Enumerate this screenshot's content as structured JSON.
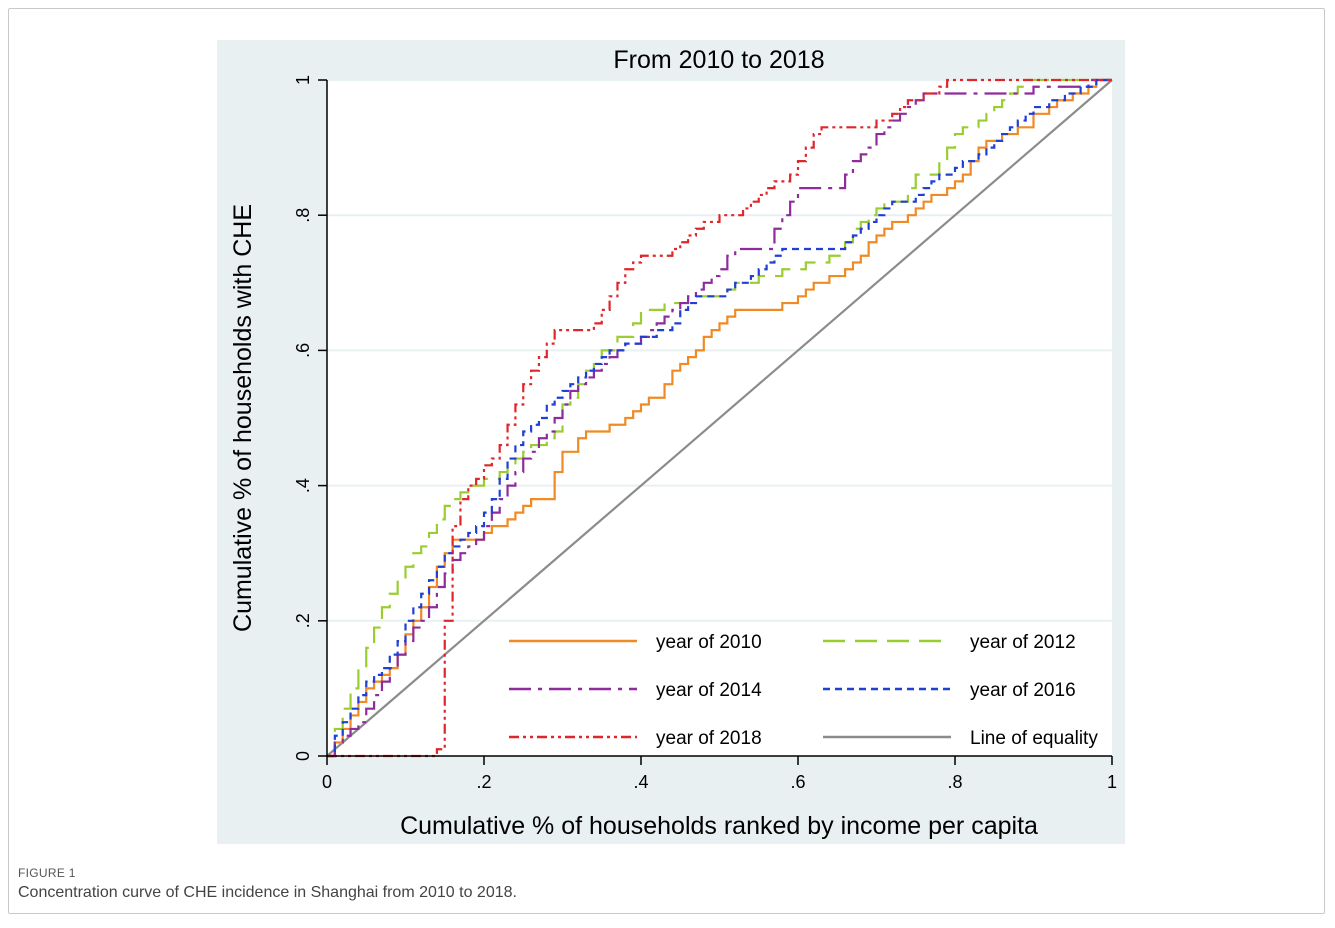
{
  "figure": {
    "label": "FIGURE 1",
    "caption": "Concentration curve of CHE incidence in Shanghai from 2010 to 2018."
  },
  "colors": {
    "panel_bg": "#e9f0f2",
    "plot_bg": "#ffffff",
    "grid": "#e9f0f2",
    "axis": "#000000"
  },
  "chart_data": {
    "type": "line",
    "title": "From 2010 to 2018",
    "xlabel": "Cumulative % of households ranked by income per capita",
    "ylabel": "Cumulative % of households with CHE",
    "xlim": [
      0,
      1
    ],
    "ylim": [
      0,
      1
    ],
    "xticks": [
      0,
      0.2,
      0.4,
      0.6,
      0.8,
      1
    ],
    "xtick_labels": [
      "0",
      ".2",
      ".4",
      ".6",
      ".8",
      "1"
    ],
    "yticks": [
      0,
      0.2,
      0.4,
      0.6,
      0.8,
      1
    ],
    "ytick_labels": [
      "0",
      ".2",
      ".4",
      ".6",
      ".8",
      "1"
    ],
    "grid": "horizontal",
    "legend_position": "bottom-right, inside plot, 2 columns",
    "series": [
      {
        "name": "year of 2010",
        "color": "#f08a24",
        "dash": "solid",
        "x": [
          0,
          0.01,
          0.02,
          0.03,
          0.04,
          0.05,
          0.06,
          0.07,
          0.08,
          0.09,
          0.1,
          0.11,
          0.12,
          0.13,
          0.14,
          0.15,
          0.16,
          0.17,
          0.18,
          0.19,
          0.2,
          0.21,
          0.22,
          0.23,
          0.24,
          0.25,
          0.26,
          0.27,
          0.28,
          0.29,
          0.3,
          0.31,
          0.32,
          0.33,
          0.34,
          0.35,
          0.36,
          0.37,
          0.38,
          0.39,
          0.4,
          0.41,
          0.42,
          0.43,
          0.44,
          0.45,
          0.46,
          0.47,
          0.48,
          0.49,
          0.5,
          0.51,
          0.52,
          0.53,
          0.54,
          0.55,
          0.56,
          0.57,
          0.58,
          0.59,
          0.6,
          0.61,
          0.62,
          0.63,
          0.64,
          0.65,
          0.66,
          0.67,
          0.68,
          0.69,
          0.7,
          0.71,
          0.72,
          0.73,
          0.74,
          0.75,
          0.76,
          0.77,
          0.78,
          0.79,
          0.8,
          0.81,
          0.82,
          0.83,
          0.84,
          0.85,
          0.86,
          0.87,
          0.88,
          0.89,
          0.9,
          0.91,
          0.92,
          0.93,
          0.94,
          0.95,
          0.96,
          0.97,
          0.98,
          0.99,
          1
        ],
        "y": [
          0,
          0.02,
          0.04,
          0.06,
          0.08,
          0.1,
          0.11,
          0.12,
          0.13,
          0.15,
          0.18,
          0.2,
          0.22,
          0.25,
          0.28,
          0.3,
          0.32,
          0.32,
          0.32,
          0.32,
          0.33,
          0.34,
          0.34,
          0.35,
          0.36,
          0.37,
          0.38,
          0.38,
          0.38,
          0.42,
          0.45,
          0.45,
          0.47,
          0.48,
          0.48,
          0.48,
          0.49,
          0.49,
          0.5,
          0.51,
          0.52,
          0.53,
          0.53,
          0.55,
          0.57,
          0.58,
          0.59,
          0.6,
          0.62,
          0.63,
          0.64,
          0.65,
          0.66,
          0.66,
          0.66,
          0.66,
          0.66,
          0.66,
          0.67,
          0.67,
          0.68,
          0.69,
          0.7,
          0.7,
          0.71,
          0.71,
          0.72,
          0.73,
          0.74,
          0.76,
          0.77,
          0.78,
          0.79,
          0.79,
          0.8,
          0.81,
          0.82,
          0.83,
          0.83,
          0.84,
          0.85,
          0.86,
          0.88,
          0.9,
          0.91,
          0.91,
          0.92,
          0.92,
          0.93,
          0.93,
          0.95,
          0.95,
          0.96,
          0.97,
          0.97,
          0.98,
          0.98,
          0.99,
          1,
          1,
          1
        ]
      },
      {
        "name": "year of 2012",
        "color": "#9acd32",
        "dash": "long-dash",
        "x": [
          0,
          0.01,
          0.02,
          0.03,
          0.04,
          0.05,
          0.06,
          0.07,
          0.08,
          0.09,
          0.1,
          0.11,
          0.12,
          0.13,
          0.14,
          0.15,
          0.16,
          0.17,
          0.18,
          0.19,
          0.2,
          0.21,
          0.22,
          0.23,
          0.24,
          0.25,
          0.26,
          0.27,
          0.28,
          0.29,
          0.3,
          0.31,
          0.32,
          0.33,
          0.34,
          0.35,
          0.36,
          0.37,
          0.38,
          0.39,
          0.4,
          0.41,
          0.42,
          0.43,
          0.44,
          0.45,
          0.46,
          0.47,
          0.48,
          0.49,
          0.5,
          0.51,
          0.52,
          0.53,
          0.54,
          0.55,
          0.56,
          0.57,
          0.58,
          0.59,
          0.6,
          0.61,
          0.62,
          0.63,
          0.64,
          0.65,
          0.66,
          0.67,
          0.68,
          0.69,
          0.7,
          0.71,
          0.72,
          0.73,
          0.74,
          0.75,
          0.76,
          0.77,
          0.78,
          0.79,
          0.8,
          0.81,
          0.82,
          0.83,
          0.84,
          0.85,
          0.86,
          0.87,
          0.88,
          0.89,
          0.9,
          0.91,
          0.92,
          0.93,
          0.94,
          0.95,
          0.96,
          0.97,
          0.98,
          0.99,
          1
        ],
        "y": [
          0,
          0.04,
          0.07,
          0.1,
          0.13,
          0.16,
          0.19,
          0.22,
          0.24,
          0.26,
          0.28,
          0.3,
          0.31,
          0.33,
          0.35,
          0.37,
          0.38,
          0.39,
          0.4,
          0.4,
          0.41,
          0.41,
          0.42,
          0.43,
          0.44,
          0.45,
          0.46,
          0.46,
          0.47,
          0.48,
          0.52,
          0.53,
          0.55,
          0.57,
          0.58,
          0.6,
          0.6,
          0.62,
          0.62,
          0.64,
          0.66,
          0.66,
          0.66,
          0.67,
          0.67,
          0.67,
          0.68,
          0.68,
          0.68,
          0.68,
          0.68,
          0.69,
          0.7,
          0.7,
          0.7,
          0.71,
          0.71,
          0.71,
          0.72,
          0.72,
          0.72,
          0.73,
          0.73,
          0.73,
          0.74,
          0.74,
          0.76,
          0.78,
          0.79,
          0.8,
          0.81,
          0.82,
          0.82,
          0.82,
          0.84,
          0.86,
          0.86,
          0.86,
          0.88,
          0.9,
          0.92,
          0.93,
          0.93,
          0.94,
          0.95,
          0.96,
          0.97,
          0.98,
          0.99,
          1,
          1,
          1,
          1,
          1,
          1,
          1,
          1,
          1,
          1,
          1,
          1
        ]
      },
      {
        "name": "year of 2014",
        "color": "#8e2c9c",
        "dash": "dash-dot",
        "x": [
          0,
          0.01,
          0.02,
          0.03,
          0.04,
          0.05,
          0.06,
          0.07,
          0.08,
          0.09,
          0.1,
          0.11,
          0.12,
          0.13,
          0.14,
          0.15,
          0.16,
          0.17,
          0.18,
          0.19,
          0.2,
          0.21,
          0.22,
          0.23,
          0.24,
          0.25,
          0.26,
          0.27,
          0.28,
          0.29,
          0.3,
          0.31,
          0.32,
          0.33,
          0.34,
          0.35,
          0.36,
          0.37,
          0.38,
          0.39,
          0.4,
          0.41,
          0.42,
          0.43,
          0.44,
          0.45,
          0.46,
          0.47,
          0.48,
          0.49,
          0.5,
          0.51,
          0.52,
          0.53,
          0.54,
          0.55,
          0.56,
          0.57,
          0.58,
          0.59,
          0.6,
          0.61,
          0.62,
          0.63,
          0.64,
          0.65,
          0.66,
          0.67,
          0.68,
          0.69,
          0.7,
          0.71,
          0.72,
          0.73,
          0.74,
          0.75,
          0.76,
          0.77,
          0.78,
          0.79,
          0.8,
          0.81,
          0.82,
          0.83,
          0.84,
          0.85,
          0.86,
          0.87,
          0.88,
          0.89,
          0.9,
          0.91,
          0.92,
          0.93,
          0.94,
          0.95,
          0.96,
          0.97,
          0.98,
          0.99,
          1
        ],
        "y": [
          0,
          0.02,
          0.03,
          0.04,
          0.05,
          0.07,
          0.09,
          0.11,
          0.13,
          0.15,
          0.17,
          0.19,
          0.2,
          0.22,
          0.25,
          0.27,
          0.29,
          0.3,
          0.31,
          0.32,
          0.34,
          0.36,
          0.38,
          0.4,
          0.42,
          0.44,
          0.45,
          0.47,
          0.48,
          0.5,
          0.52,
          0.54,
          0.55,
          0.56,
          0.57,
          0.58,
          0.59,
          0.6,
          0.61,
          0.61,
          0.62,
          0.63,
          0.64,
          0.65,
          0.66,
          0.67,
          0.68,
          0.69,
          0.7,
          0.71,
          0.72,
          0.74,
          0.75,
          0.75,
          0.75,
          0.75,
          0.75,
          0.78,
          0.8,
          0.82,
          0.84,
          0.84,
          0.84,
          0.84,
          0.84,
          0.84,
          0.86,
          0.88,
          0.89,
          0.9,
          0.92,
          0.93,
          0.94,
          0.95,
          0.96,
          0.97,
          0.98,
          0.98,
          0.98,
          0.98,
          0.98,
          0.98,
          0.98,
          0.98,
          0.98,
          0.98,
          0.98,
          0.98,
          0.98,
          0.98,
          0.99,
          0.99,
          0.99,
          0.99,
          0.99,
          0.99,
          0.99,
          1,
          1,
          1,
          1
        ]
      },
      {
        "name": "year of 2016",
        "color": "#1f3fd6",
        "dash": "short-dash",
        "x": [
          0,
          0.01,
          0.02,
          0.03,
          0.04,
          0.05,
          0.06,
          0.07,
          0.08,
          0.09,
          0.1,
          0.11,
          0.12,
          0.13,
          0.14,
          0.15,
          0.16,
          0.17,
          0.18,
          0.19,
          0.2,
          0.21,
          0.22,
          0.23,
          0.24,
          0.25,
          0.26,
          0.27,
          0.28,
          0.29,
          0.3,
          0.31,
          0.32,
          0.33,
          0.34,
          0.35,
          0.36,
          0.37,
          0.38,
          0.39,
          0.4,
          0.41,
          0.42,
          0.43,
          0.44,
          0.45,
          0.46,
          0.47,
          0.48,
          0.49,
          0.5,
          0.51,
          0.52,
          0.53,
          0.54,
          0.55,
          0.56,
          0.57,
          0.58,
          0.59,
          0.6,
          0.61,
          0.62,
          0.63,
          0.64,
          0.65,
          0.66,
          0.67,
          0.68,
          0.69,
          0.7,
          0.71,
          0.72,
          0.73,
          0.74,
          0.75,
          0.76,
          0.77,
          0.78,
          0.79,
          0.8,
          0.81,
          0.82,
          0.83,
          0.84,
          0.85,
          0.86,
          0.87,
          0.88,
          0.89,
          0.9,
          0.91,
          0.92,
          0.93,
          0.94,
          0.95,
          0.96,
          0.97,
          0.98,
          0.99,
          1
        ],
        "y": [
          0,
          0.03,
          0.05,
          0.07,
          0.09,
          0.11,
          0.12,
          0.13,
          0.15,
          0.17,
          0.2,
          0.22,
          0.24,
          0.26,
          0.28,
          0.3,
          0.31,
          0.32,
          0.33,
          0.34,
          0.36,
          0.38,
          0.41,
          0.44,
          0.46,
          0.48,
          0.49,
          0.5,
          0.52,
          0.53,
          0.54,
          0.55,
          0.56,
          0.57,
          0.58,
          0.59,
          0.6,
          0.6,
          0.61,
          0.61,
          0.62,
          0.62,
          0.63,
          0.63,
          0.64,
          0.66,
          0.67,
          0.68,
          0.68,
          0.68,
          0.68,
          0.69,
          0.7,
          0.7,
          0.71,
          0.72,
          0.73,
          0.74,
          0.75,
          0.75,
          0.75,
          0.75,
          0.75,
          0.75,
          0.75,
          0.75,
          0.76,
          0.77,
          0.78,
          0.79,
          0.8,
          0.81,
          0.82,
          0.82,
          0.82,
          0.83,
          0.84,
          0.85,
          0.86,
          0.86,
          0.87,
          0.88,
          0.88,
          0.89,
          0.9,
          0.91,
          0.92,
          0.93,
          0.94,
          0.95,
          0.96,
          0.96,
          0.97,
          0.97,
          0.98,
          0.98,
          0.99,
          0.99,
          1,
          1,
          1
        ]
      },
      {
        "name": "year of 2018",
        "color": "#e0262a",
        "dash": "dash-dot-dot",
        "x": [
          0,
          0.01,
          0.02,
          0.03,
          0.04,
          0.05,
          0.06,
          0.07,
          0.08,
          0.09,
          0.1,
          0.11,
          0.12,
          0.13,
          0.14,
          0.15,
          0.16,
          0.17,
          0.18,
          0.19,
          0.2,
          0.21,
          0.22,
          0.23,
          0.24,
          0.25,
          0.26,
          0.27,
          0.28,
          0.29,
          0.3,
          0.31,
          0.32,
          0.33,
          0.34,
          0.35,
          0.36,
          0.37,
          0.38,
          0.39,
          0.4,
          0.41,
          0.42,
          0.43,
          0.44,
          0.45,
          0.46,
          0.47,
          0.48,
          0.49,
          0.5,
          0.51,
          0.52,
          0.53,
          0.54,
          0.55,
          0.56,
          0.57,
          0.58,
          0.59,
          0.6,
          0.61,
          0.62,
          0.63,
          0.64,
          0.65,
          0.66,
          0.67,
          0.68,
          0.69,
          0.7,
          0.71,
          0.72,
          0.73,
          0.74,
          0.75,
          0.76,
          0.77,
          0.78,
          0.79,
          0.8,
          0.81,
          0.82,
          0.83,
          0.84,
          0.85,
          0.86,
          0.87,
          0.88,
          0.89,
          0.9,
          0.91,
          0.92,
          0.93,
          0.94,
          0.95,
          0.96,
          0.97,
          0.98,
          0.99,
          1
        ],
        "y": [
          0,
          0,
          0,
          0,
          0,
          0,
          0,
          0,
          0,
          0,
          0,
          0,
          0,
          0,
          0.01,
          0.2,
          0.34,
          0.38,
          0.4,
          0.41,
          0.43,
          0.44,
          0.46,
          0.49,
          0.52,
          0.55,
          0.57,
          0.59,
          0.61,
          0.63,
          0.63,
          0.63,
          0.63,
          0.63,
          0.64,
          0.66,
          0.68,
          0.7,
          0.72,
          0.73,
          0.74,
          0.74,
          0.74,
          0.74,
          0.75,
          0.76,
          0.77,
          0.78,
          0.79,
          0.79,
          0.8,
          0.8,
          0.8,
          0.81,
          0.82,
          0.83,
          0.84,
          0.85,
          0.85,
          0.86,
          0.88,
          0.9,
          0.92,
          0.93,
          0.93,
          0.93,
          0.93,
          0.93,
          0.93,
          0.93,
          0.94,
          0.94,
          0.95,
          0.96,
          0.97,
          0.97,
          0.98,
          0.98,
          0.99,
          1,
          1,
          1,
          1,
          1,
          1,
          1,
          1,
          1,
          1,
          1,
          1,
          1,
          1,
          1,
          1,
          1,
          1,
          1,
          1,
          1,
          1
        ]
      },
      {
        "name": "Line of equality",
        "color": "#8c8c8c",
        "dash": "solid",
        "x": [
          0,
          1
        ],
        "y": [
          0,
          1
        ]
      }
    ]
  }
}
